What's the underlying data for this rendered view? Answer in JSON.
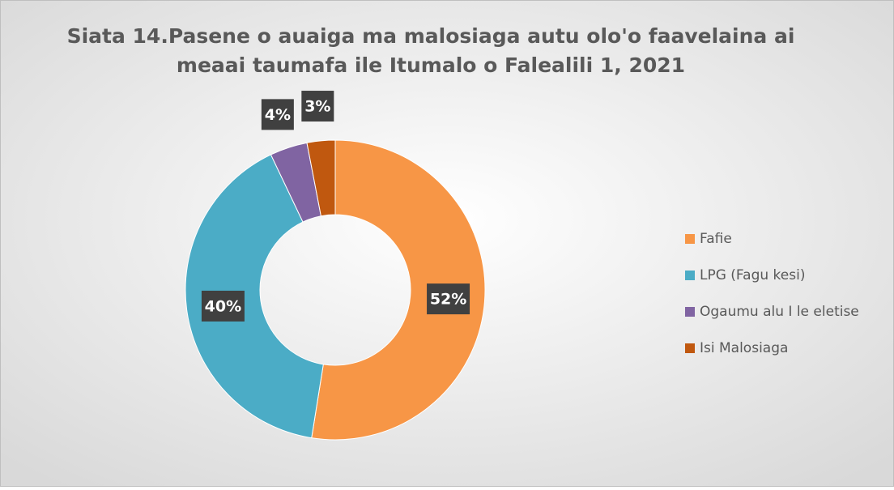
{
  "chart_data": {
    "type": "donut",
    "title": [
      "Siata 14.Pasene o auaiga ma malosiaga autu olo'o faavelaina ai",
      "meaai taumafa ile Itumalo o Falealili 1, 2021"
    ],
    "categories": [
      "Fafie",
      "LPG (Fagu kesi)",
      "Ogaumu alu I le eletise",
      "Isi Malosiaga"
    ],
    "values": [
      52,
      40,
      4,
      3
    ],
    "value_labels": [
      "52%",
      "40%",
      "4%",
      "3%"
    ],
    "colors": [
      "#f79646",
      "#4bacc6",
      "#8064a2",
      "#c0580f"
    ],
    "legend": "right"
  }
}
